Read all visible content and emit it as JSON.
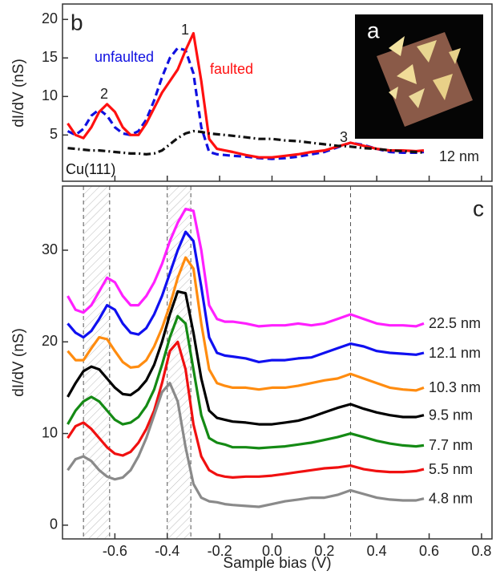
{
  "chart_data": [
    {
      "type": "line",
      "panel_label": "b",
      "inset_label": "a",
      "ylabel": "dI/dV (nS)",
      "xlim": [
        -0.8,
        0.84
      ],
      "ylim": [
        -1,
        22
      ],
      "yticks": [
        5,
        10,
        15,
        20
      ],
      "peak_labels": [
        "1",
        "2",
        "3"
      ],
      "size_label": "12 nm",
      "x": [
        -0.78,
        -0.75,
        -0.72,
        -0.69,
        -0.66,
        -0.63,
        -0.6,
        -0.57,
        -0.54,
        -0.51,
        -0.48,
        -0.45,
        -0.42,
        -0.39,
        -0.36,
        -0.33,
        -0.3,
        -0.27,
        -0.24,
        -0.21,
        -0.18,
        -0.15,
        -0.1,
        -0.05,
        0,
        0.05,
        0.1,
        0.15,
        0.2,
        0.25,
        0.3,
        0.35,
        0.4,
        0.45,
        0.5,
        0.55,
        0.58
      ],
      "series": [
        {
          "name": "unfaulted",
          "color": "#1010e0",
          "linestyle": "dashed",
          "values": [
            5.5,
            5,
            5.8,
            7.5,
            8.3,
            7.5,
            6,
            5.2,
            5,
            5.5,
            7,
            9.5,
            12.5,
            15,
            16.3,
            16,
            13,
            6,
            2.8,
            2.5,
            2.4,
            2.3,
            2.2,
            2,
            1.9,
            2,
            2.2,
            2.5,
            2.8,
            3.4,
            4,
            3.7,
            3.2,
            2.8,
            2.7,
            2.7,
            2.8
          ]
        },
        {
          "name": "faulted",
          "color": "#ff1010",
          "linestyle": "solid",
          "values": [
            6.5,
            5,
            4.6,
            6,
            8,
            9,
            8,
            6,
            5,
            5,
            6.5,
            8.5,
            10.5,
            12,
            13.5,
            16,
            18.2,
            12,
            4.5,
            3.2,
            3,
            2.8,
            2.4,
            2.1,
            2.1,
            2.3,
            2.5,
            2.8,
            3,
            3.5,
            4,
            3.6,
            3.2,
            3,
            3,
            2.9,
            3
          ]
        },
        {
          "name": "Cu(111)",
          "color": "#111111",
          "linestyle": "dashdot",
          "values": [
            3.3,
            3.2,
            3.1,
            3,
            3,
            2.9,
            2.8,
            2.7,
            2.6,
            2.6,
            2.5,
            2.6,
            3,
            3.8,
            4.6,
            5.2,
            5.5,
            5.4,
            5.2,
            5.1,
            5,
            4.9,
            4.7,
            4.5,
            4.5,
            4.3,
            4.2,
            4,
            3.8,
            3.6,
            3.5,
            3.3,
            3.2,
            3,
            2.9,
            2.8,
            2.7
          ]
        }
      ]
    },
    {
      "type": "line",
      "panel_label": "c",
      "ylabel": "dI/dV (nS)",
      "xlabel": "Sample bias (V)",
      "xlim": [
        -0.8,
        0.84
      ],
      "ylim": [
        -1.5,
        37
      ],
      "yticks": [
        0,
        10,
        20,
        30
      ],
      "xticks": [
        -0.6,
        -0.4,
        -0.2,
        {
          "value": 0,
          "label": "0.0"
        },
        0.2,
        0.4,
        0.6,
        0.8
      ],
      "vlines": [
        -0.72,
        -0.62,
        -0.4,
        -0.31,
        0.3
      ],
      "spans": [
        [
          -0.72,
          -0.62
        ],
        [
          -0.4,
          -0.31
        ]
      ],
      "x": [
        -0.78,
        -0.75,
        -0.72,
        -0.69,
        -0.66,
        -0.63,
        -0.6,
        -0.57,
        -0.54,
        -0.51,
        -0.48,
        -0.45,
        -0.42,
        -0.39,
        -0.36,
        -0.33,
        -0.3,
        -0.27,
        -0.24,
        -0.21,
        -0.18,
        -0.15,
        -0.1,
        -0.05,
        0,
        0.05,
        0.1,
        0.15,
        0.2,
        0.25,
        0.3,
        0.35,
        0.4,
        0.45,
        0.5,
        0.55,
        0.58
      ],
      "series": [
        {
          "name": "22.5 nm",
          "color": "#ff20ff",
          "linestyle": "solid",
          "values": [
            25,
            23.5,
            23.2,
            24,
            25.5,
            27,
            26.5,
            25,
            24,
            24,
            25,
            26.5,
            28.5,
            31,
            33,
            34.5,
            34.3,
            30,
            24,
            22.5,
            22.2,
            22.2,
            22,
            21.7,
            21.8,
            21.8,
            22,
            21.8,
            22,
            22.5,
            23,
            22.5,
            22,
            21.8,
            21.8,
            21.7,
            22
          ]
        },
        {
          "name": "12.1 nm",
          "color": "#1010f0",
          "linestyle": "solid",
          "values": [
            22,
            21,
            20.5,
            21.2,
            22.5,
            24,
            23.5,
            22,
            21,
            20.8,
            21.5,
            23,
            25,
            27.5,
            30,
            32,
            31,
            26,
            20.5,
            18.8,
            18.5,
            18.4,
            18.2,
            17.8,
            18,
            18,
            18.2,
            18.3,
            18.8,
            19.3,
            19.8,
            19.5,
            19,
            18.8,
            18.7,
            18.6,
            18.8
          ]
        },
        {
          "name": "10.3 nm",
          "color": "#ff8c10",
          "linestyle": "solid",
          "values": [
            19,
            18,
            18,
            19.3,
            20.5,
            20.3,
            19,
            17.8,
            17.2,
            17.3,
            18,
            19.5,
            21.5,
            24,
            27,
            29.2,
            28,
            22,
            17,
            15.5,
            15.2,
            15,
            15,
            14.8,
            15,
            15,
            15.2,
            15.5,
            15.8,
            16,
            16.5,
            16,
            15.5,
            15,
            14.8,
            14.7,
            15
          ]
        },
        {
          "name": "9.5 nm",
          "color": "#000000",
          "linestyle": "solid",
          "values": [
            14,
            15.5,
            16.8,
            17.3,
            17,
            16,
            15,
            14.3,
            14.2,
            14.8,
            15.8,
            17.5,
            20,
            23,
            25.5,
            25.3,
            21,
            16,
            12.5,
            11.7,
            11.5,
            11.3,
            11.2,
            11,
            11,
            11.2,
            11.4,
            11.8,
            12.3,
            12.8,
            13.2,
            12.7,
            12.3,
            12,
            11.8,
            11.8,
            12
          ]
        },
        {
          "name": "7.7 nm",
          "color": "#148a14",
          "linestyle": "solid",
          "values": [
            11,
            12.5,
            13.5,
            14,
            13.5,
            12.5,
            11.5,
            11,
            11.2,
            11.8,
            13,
            14.8,
            17.5,
            20.5,
            22.8,
            22,
            17,
            12,
            9.5,
            9,
            8.8,
            8.5,
            8.5,
            8.4,
            8.5,
            8.6,
            8.8,
            9,
            9.3,
            9.6,
            10,
            9.6,
            9.2,
            8.9,
            8.7,
            8.6,
            8.7
          ]
        },
        {
          "name": "5.5 nm",
          "color": "#f01010",
          "linestyle": "solid",
          "values": [
            9.5,
            10.8,
            11.2,
            10.5,
            9.5,
            8.5,
            7.8,
            7.6,
            8,
            9,
            10.5,
            12.5,
            15.5,
            19,
            20,
            17,
            11,
            7.5,
            6,
            5.5,
            5.3,
            5.2,
            5.3,
            5.3,
            5.4,
            5.6,
            5.8,
            6,
            6.2,
            6.3,
            6.5,
            6.1,
            5.9,
            5.8,
            5.8,
            5.9,
            6.1
          ]
        },
        {
          "name": "4.8 nm",
          "color": "#8a8a8a",
          "linestyle": "solid",
          "values": [
            6,
            7.2,
            7.5,
            7,
            6,
            5.3,
            5,
            5.2,
            6,
            7.5,
            9.5,
            12,
            14.5,
            15.5,
            13.5,
            8.5,
            4.5,
            3,
            2.6,
            2.5,
            2.3,
            2.2,
            2.1,
            2,
            2.3,
            2.6,
            2.8,
            3,
            3,
            3.3,
            3.8,
            3.4,
            3,
            2.8,
            2.7,
            2.7,
            2.9
          ]
        }
      ]
    }
  ]
}
